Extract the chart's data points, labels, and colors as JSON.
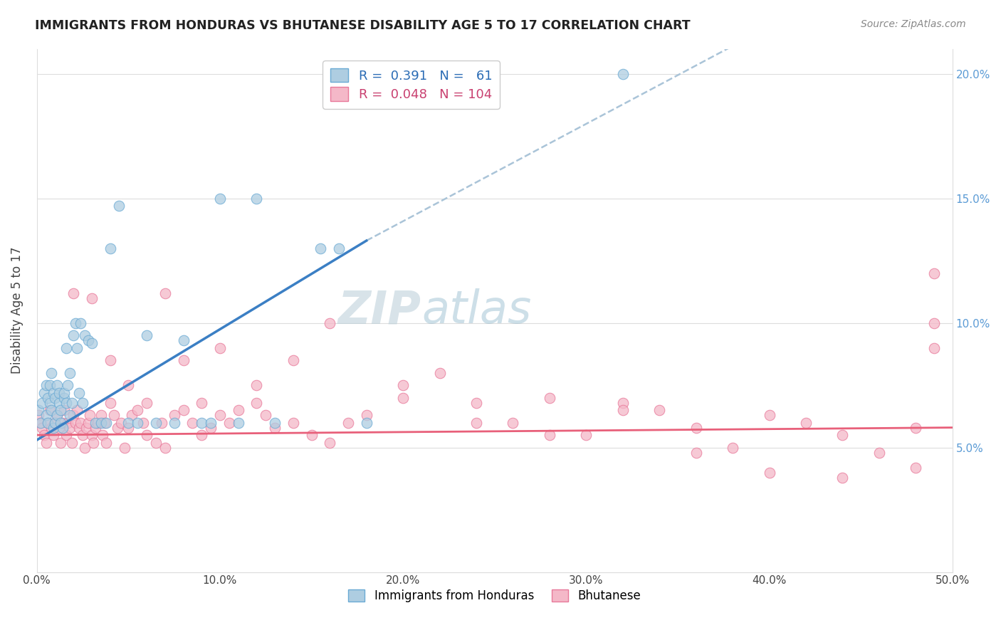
{
  "title": "IMMIGRANTS FROM HONDURAS VS BHUTANESE DISABILITY AGE 5 TO 17 CORRELATION CHART",
  "source": "Source: ZipAtlas.com",
  "xlabel": "",
  "ylabel": "Disability Age 5 to 17",
  "xlim": [
    0.0,
    0.5
  ],
  "ylim": [
    0.0,
    0.21
  ],
  "xticks": [
    0.0,
    0.1,
    0.2,
    0.3,
    0.4,
    0.5
  ],
  "xticklabels": [
    "0.0%",
    "10.0%",
    "20.0%",
    "30.0%",
    "40.0%",
    "50.0%"
  ],
  "yticks_right": [
    0.05,
    0.1,
    0.15,
    0.2
  ],
  "yticklabels_right": [
    "5.0%",
    "10.0%",
    "15.0%",
    "20.0%"
  ],
  "color_blue": "#aecde1",
  "color_pink": "#f4b8c8",
  "color_blue_edge": "#6aaad4",
  "color_pink_edge": "#e8799a",
  "color_blue_line": "#3b7fc4",
  "color_pink_line": "#e8607a",
  "color_dashed": "#aac4d8",
  "watermark_color": "#ccdde8",
  "honduras_x": [
    0.001,
    0.002,
    0.003,
    0.004,
    0.005,
    0.005,
    0.006,
    0.006,
    0.007,
    0.007,
    0.008,
    0.008,
    0.009,
    0.009,
    0.01,
    0.01,
    0.011,
    0.011,
    0.012,
    0.012,
    0.013,
    0.013,
    0.014,
    0.015,
    0.015,
    0.016,
    0.016,
    0.017,
    0.018,
    0.018,
    0.019,
    0.02,
    0.021,
    0.022,
    0.023,
    0.024,
    0.025,
    0.026,
    0.028,
    0.03,
    0.032,
    0.035,
    0.038,
    0.04,
    0.045,
    0.05,
    0.055,
    0.06,
    0.065,
    0.075,
    0.08,
    0.09,
    0.095,
    0.1,
    0.11,
    0.12,
    0.13,
    0.155,
    0.165,
    0.18,
    0.32
  ],
  "honduras_y": [
    0.065,
    0.06,
    0.068,
    0.072,
    0.063,
    0.075,
    0.06,
    0.07,
    0.068,
    0.075,
    0.065,
    0.08,
    0.058,
    0.072,
    0.06,
    0.07,
    0.063,
    0.075,
    0.068,
    0.072,
    0.06,
    0.065,
    0.058,
    0.07,
    0.072,
    0.068,
    0.09,
    0.075,
    0.063,
    0.08,
    0.068,
    0.095,
    0.1,
    0.09,
    0.072,
    0.1,
    0.068,
    0.095,
    0.093,
    0.092,
    0.06,
    0.06,
    0.06,
    0.13,
    0.147,
    0.06,
    0.06,
    0.095,
    0.06,
    0.06,
    0.093,
    0.06,
    0.06,
    0.15,
    0.06,
    0.15,
    0.06,
    0.13,
    0.13,
    0.06,
    0.2
  ],
  "bhutanese_x": [
    0.001,
    0.002,
    0.003,
    0.004,
    0.005,
    0.006,
    0.007,
    0.008,
    0.009,
    0.01,
    0.011,
    0.012,
    0.013,
    0.014,
    0.015,
    0.016,
    0.017,
    0.018,
    0.019,
    0.02,
    0.021,
    0.022,
    0.023,
    0.024,
    0.025,
    0.026,
    0.027,
    0.028,
    0.029,
    0.03,
    0.031,
    0.032,
    0.033,
    0.035,
    0.036,
    0.037,
    0.038,
    0.04,
    0.042,
    0.044,
    0.046,
    0.048,
    0.05,
    0.052,
    0.055,
    0.058,
    0.06,
    0.065,
    0.068,
    0.07,
    0.075,
    0.08,
    0.085,
    0.09,
    0.095,
    0.1,
    0.105,
    0.11,
    0.12,
    0.125,
    0.13,
    0.14,
    0.15,
    0.16,
    0.17,
    0.18,
    0.2,
    0.22,
    0.24,
    0.26,
    0.28,
    0.3,
    0.32,
    0.34,
    0.36,
    0.38,
    0.4,
    0.42,
    0.44,
    0.46,
    0.48,
    0.49,
    0.49,
    0.49,
    0.04,
    0.05,
    0.06,
    0.08,
    0.1,
    0.12,
    0.14,
    0.16,
    0.2,
    0.24,
    0.28,
    0.32,
    0.36,
    0.4,
    0.44,
    0.48,
    0.02,
    0.03,
    0.07,
    0.09
  ],
  "bhutanese_y": [
    0.063,
    0.06,
    0.058,
    0.055,
    0.052,
    0.06,
    0.065,
    0.058,
    0.055,
    0.06,
    0.063,
    0.058,
    0.052,
    0.06,
    0.065,
    0.055,
    0.06,
    0.058,
    0.052,
    0.063,
    0.06,
    0.065,
    0.058,
    0.06,
    0.055,
    0.05,
    0.058,
    0.06,
    0.063,
    0.055,
    0.052,
    0.058,
    0.06,
    0.063,
    0.055,
    0.06,
    0.052,
    0.068,
    0.063,
    0.058,
    0.06,
    0.05,
    0.058,
    0.063,
    0.065,
    0.06,
    0.055,
    0.052,
    0.06,
    0.05,
    0.063,
    0.065,
    0.06,
    0.055,
    0.058,
    0.063,
    0.06,
    0.065,
    0.068,
    0.063,
    0.058,
    0.06,
    0.055,
    0.052,
    0.06,
    0.063,
    0.075,
    0.08,
    0.068,
    0.06,
    0.07,
    0.055,
    0.068,
    0.065,
    0.058,
    0.05,
    0.063,
    0.06,
    0.055,
    0.048,
    0.058,
    0.09,
    0.1,
    0.12,
    0.085,
    0.075,
    0.068,
    0.085,
    0.09,
    0.075,
    0.085,
    0.1,
    0.07,
    0.06,
    0.055,
    0.065,
    0.048,
    0.04,
    0.038,
    0.042,
    0.112,
    0.11,
    0.112,
    0.068
  ],
  "blue_line_x": [
    0.0,
    0.18
  ],
  "blue_line_y": [
    0.053,
    0.133
  ],
  "dashed_line_x": [
    0.18,
    0.5
  ],
  "dashed_line_y": [
    0.133,
    0.258
  ],
  "pink_line_x": [
    0.0,
    0.5
  ],
  "pink_line_y": [
    0.055,
    0.058
  ]
}
